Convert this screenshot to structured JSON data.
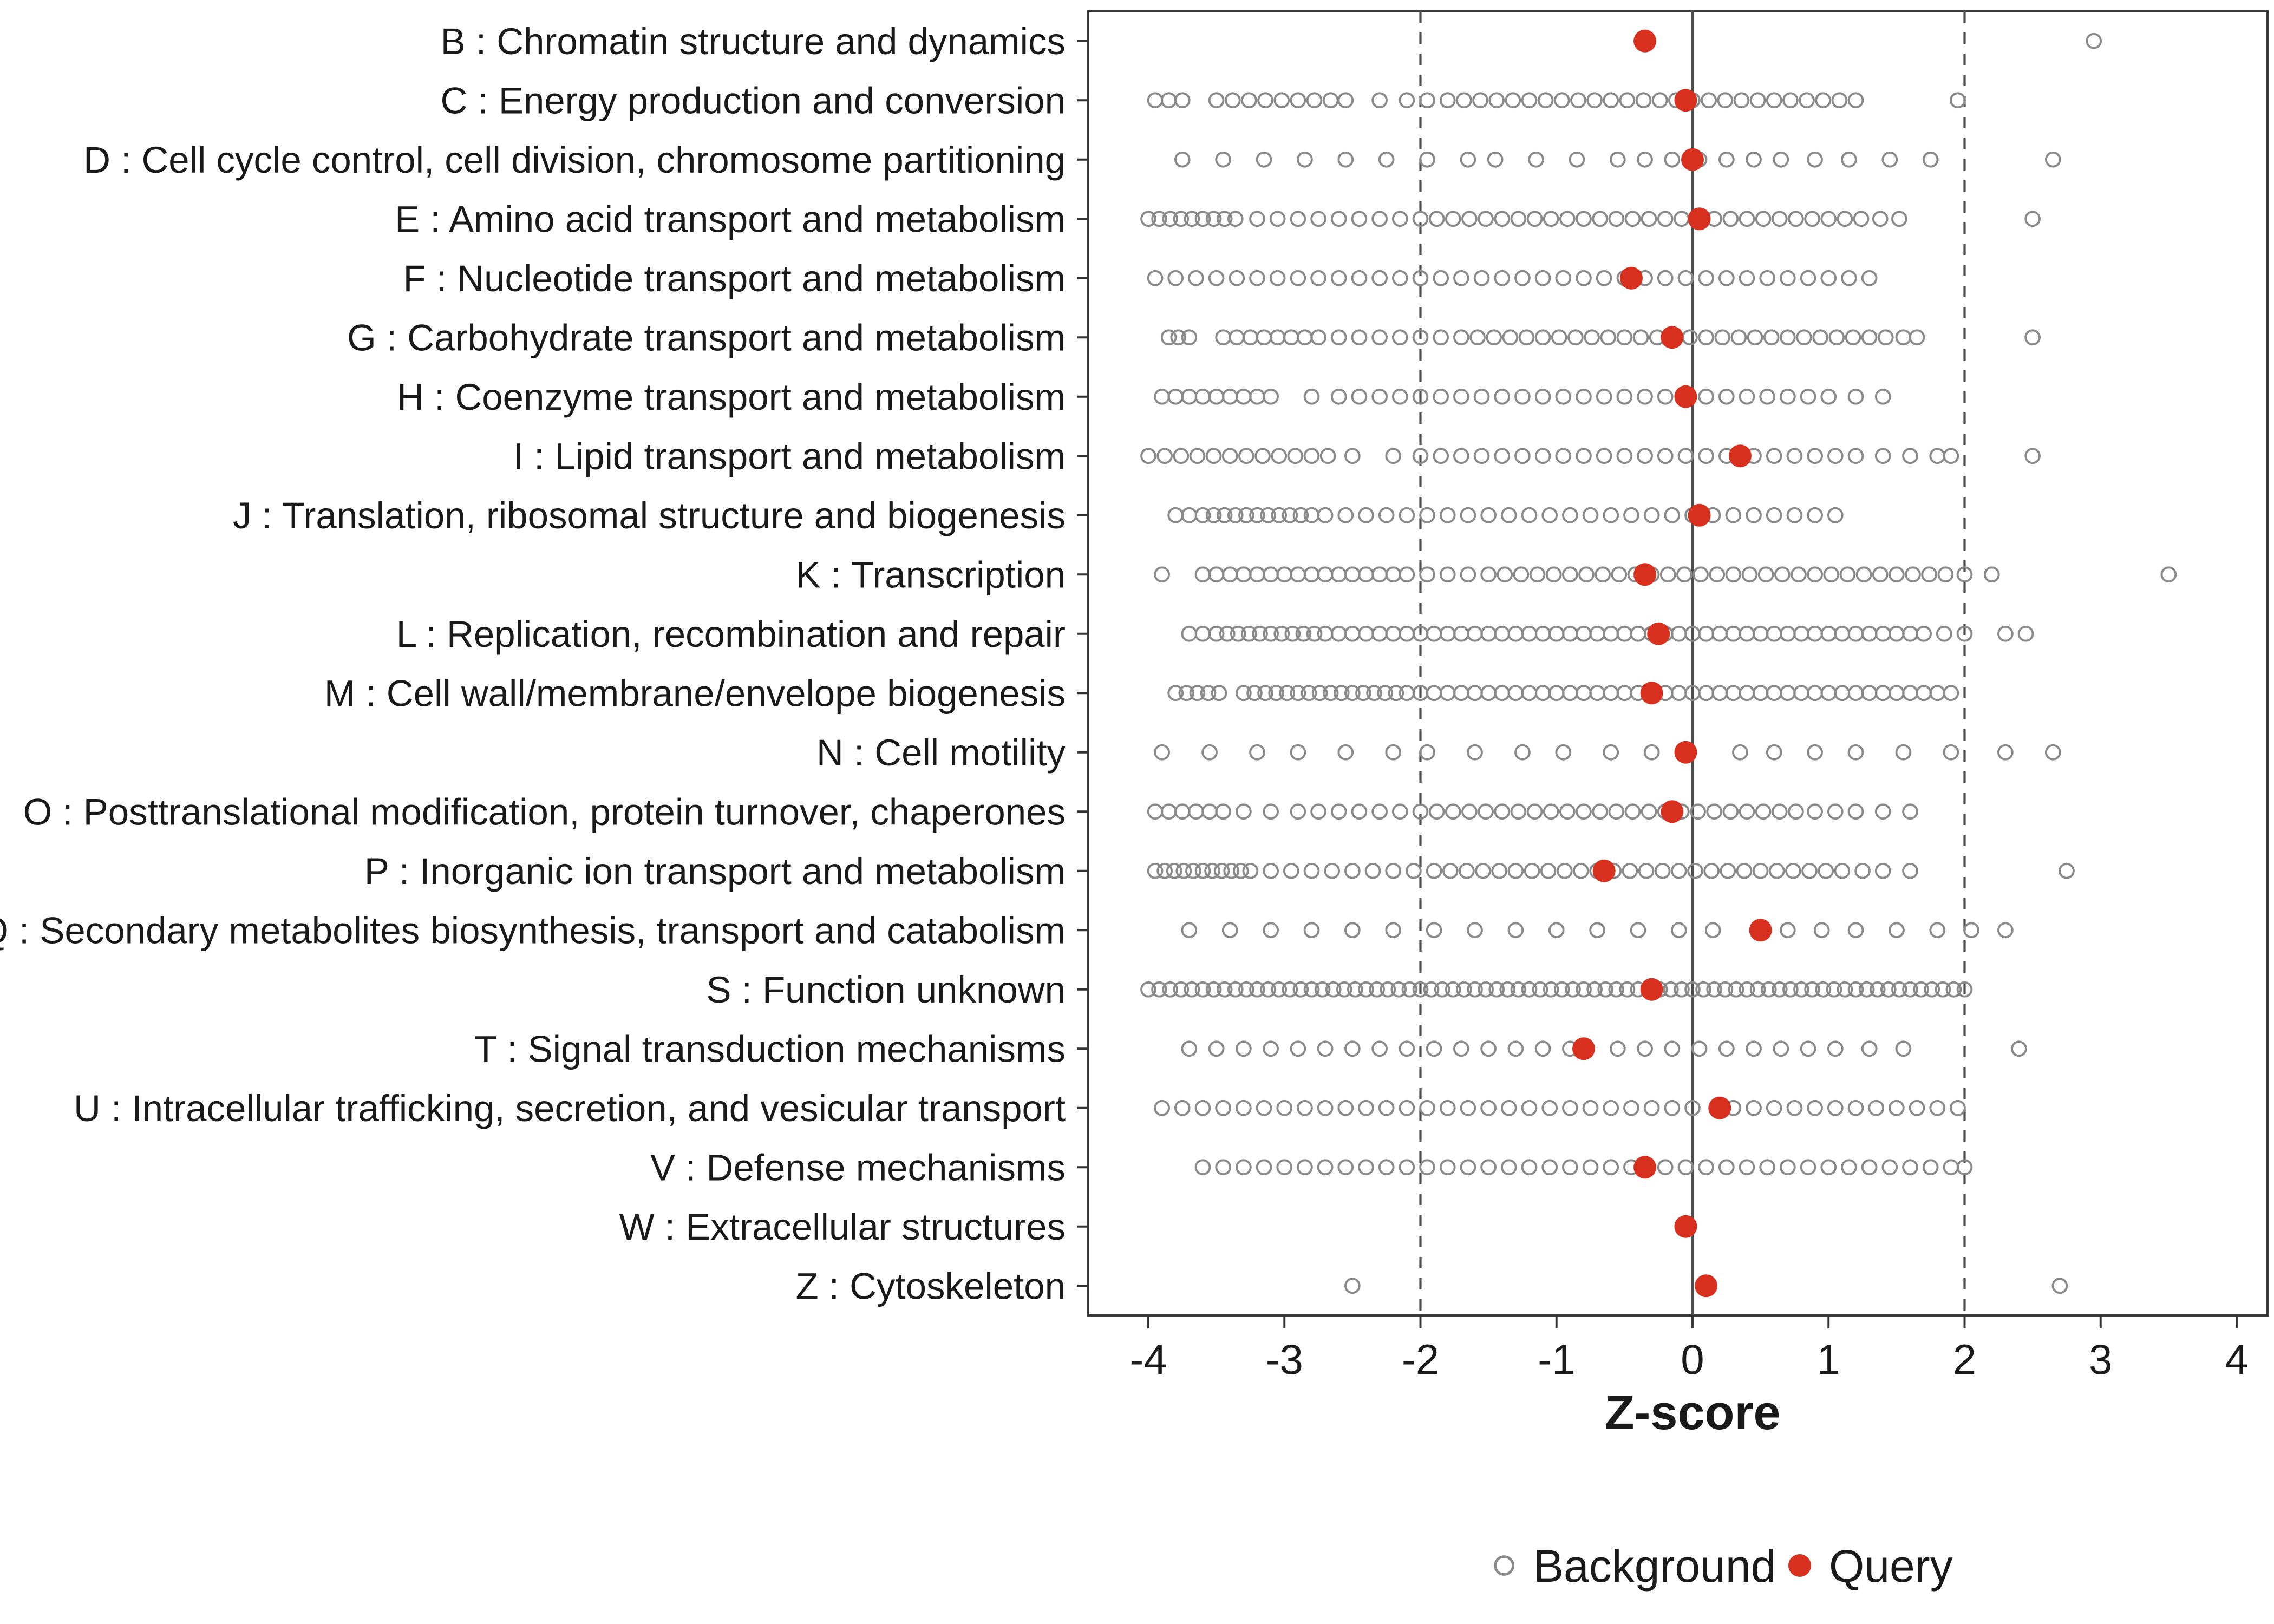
{
  "colors": {
    "query": "#d7301f",
    "background_stroke": "#8a8a8a",
    "axis_text": "#1a1a1a",
    "ref_line": "#4d4d4d",
    "panel_border": "#333333"
  },
  "legend": {
    "items": [
      {
        "label": "Background",
        "marker": "open-circle"
      },
      {
        "label": "Query",
        "marker": "filled-circle"
      }
    ]
  },
  "chart_data": {
    "type": "scatter",
    "title": "",
    "xlabel": "Z-score",
    "ylabel": "",
    "xlim": [
      -4.5,
      4.5
    ],
    "x_ticks": [
      -4,
      -3,
      -2,
      -1,
      0,
      1,
      2,
      3,
      4
    ],
    "grid": false,
    "legend_position": "bottom",
    "reference_lines": {
      "solid": [
        0
      ],
      "dashed": [
        -2,
        2
      ]
    },
    "categories": [
      {
        "label": "B : Chromatin structure and dynamics",
        "query": -0.35,
        "background": [
          2.95
        ]
      },
      {
        "label": "C : Energy production and conversion",
        "query": -0.05,
        "background": [
          -3.95,
          -3.85,
          -3.75,
          -3.5,
          -3.38,
          -3.26,
          -3.14,
          -3.02,
          -2.9,
          -2.78,
          -2.66,
          -2.55,
          -2.3,
          -2.1,
          -1.95,
          -1.8,
          -1.68,
          -1.56,
          -1.44,
          -1.32,
          -1.2,
          -1.08,
          -0.96,
          -0.84,
          -0.72,
          -0.6,
          -0.48,
          -0.36,
          -0.24,
          -0.12,
          0,
          0.12,
          0.24,
          0.36,
          0.48,
          0.6,
          0.72,
          0.84,
          0.96,
          1.08,
          1.2,
          1.95
        ]
      },
      {
        "label": "D : Cell cycle control, cell division, chromosome partitioning",
        "query": 0.0,
        "background": [
          -3.75,
          -3.45,
          -3.15,
          -2.85,
          -2.55,
          -2.25,
          -1.95,
          -1.65,
          -1.45,
          -1.15,
          -0.85,
          -0.55,
          -0.35,
          -0.15,
          0.05,
          0.25,
          0.45,
          0.65,
          0.9,
          1.15,
          1.45,
          1.75,
          2.65
        ]
      },
      {
        "label": "E : Amino acid transport and metabolism",
        "query": 0.05,
        "background": [
          -4,
          -3.92,
          -3.84,
          -3.76,
          -3.68,
          -3.6,
          -3.52,
          -3.44,
          -3.36,
          -3.2,
          -3.05,
          -2.9,
          -2.75,
          -2.6,
          -2.45,
          -2.3,
          -2.15,
          -2,
          -1.88,
          -1.76,
          -1.64,
          -1.52,
          -1.4,
          -1.28,
          -1.16,
          -1.04,
          -0.92,
          -0.8,
          -0.68,
          -0.56,
          -0.44,
          -0.32,
          -0.2,
          -0.08,
          0.04,
          0.16,
          0.28,
          0.4,
          0.52,
          0.64,
          0.76,
          0.88,
          1,
          1.12,
          1.24,
          1.38,
          1.52,
          2.5
        ]
      },
      {
        "label": "F : Nucleotide transport and metabolism",
        "query": -0.45,
        "background": [
          -3.95,
          -3.8,
          -3.65,
          -3.5,
          -3.35,
          -3.2,
          -3.05,
          -2.9,
          -2.75,
          -2.6,
          -2.45,
          -2.3,
          -2.15,
          -2,
          -1.85,
          -1.7,
          -1.55,
          -1.4,
          -1.25,
          -1.1,
          -0.95,
          -0.8,
          -0.65,
          -0.5,
          -0.35,
          -0.2,
          -0.05,
          0.1,
          0.25,
          0.4,
          0.55,
          0.7,
          0.85,
          1,
          1.15,
          1.3
        ]
      },
      {
        "label": "G : Carbohydrate transport and metabolism",
        "query": -0.15,
        "background": [
          -3.85,
          -3.78,
          -3.7,
          -3.45,
          -3.35,
          -3.25,
          -3.15,
          -3.05,
          -2.95,
          -2.85,
          -2.75,
          -2.6,
          -2.45,
          -2.3,
          -2.15,
          -2,
          -1.85,
          -1.7,
          -1.58,
          -1.46,
          -1.34,
          -1.22,
          -1.1,
          -0.98,
          -0.86,
          -0.74,
          -0.62,
          -0.5,
          -0.38,
          -0.26,
          -0.14,
          -0.02,
          0.1,
          0.22,
          0.34,
          0.46,
          0.58,
          0.7,
          0.82,
          0.94,
          1.06,
          1.18,
          1.3,
          1.42,
          1.55,
          1.65,
          2.5
        ]
      },
      {
        "label": "H : Coenzyme transport and metabolism",
        "query": -0.05,
        "background": [
          -3.9,
          -3.8,
          -3.7,
          -3.6,
          -3.5,
          -3.4,
          -3.3,
          -3.2,
          -3.1,
          -2.8,
          -2.6,
          -2.45,
          -2.3,
          -2.15,
          -2,
          -1.85,
          -1.7,
          -1.55,
          -1.4,
          -1.25,
          -1.1,
          -0.95,
          -0.8,
          -0.65,
          -0.5,
          -0.35,
          -0.2,
          -0.05,
          0.1,
          0.25,
          0.4,
          0.55,
          0.7,
          0.85,
          1,
          1.2,
          1.4
        ]
      },
      {
        "label": "I : Lipid transport and metabolism",
        "query": 0.35,
        "background": [
          -4,
          -3.88,
          -3.76,
          -3.64,
          -3.52,
          -3.4,
          -3.28,
          -3.16,
          -3.04,
          -2.92,
          -2.8,
          -2.68,
          -2.5,
          -2.2,
          -2,
          -1.85,
          -1.7,
          -1.55,
          -1.4,
          -1.25,
          -1.1,
          -0.95,
          -0.8,
          -0.65,
          -0.5,
          -0.35,
          -0.2,
          -0.05,
          0.1,
          0.25,
          0.45,
          0.6,
          0.75,
          0.9,
          1.05,
          1.2,
          1.4,
          1.6,
          1.8,
          1.9,
          2.5
        ]
      },
      {
        "label": "J : Translation, ribosomal structure and biogenesis",
        "query": 0.05,
        "background": [
          -3.8,
          -3.7,
          -3.6,
          -3.52,
          -3.44,
          -3.36,
          -3.28,
          -3.2,
          -3.12,
          -3.04,
          -2.96,
          -2.88,
          -2.8,
          -2.7,
          -2.55,
          -2.4,
          -2.25,
          -2.1,
          -1.95,
          -1.8,
          -1.65,
          -1.5,
          -1.35,
          -1.2,
          -1.05,
          -0.9,
          -0.75,
          -0.6,
          -0.45,
          -0.3,
          -0.15,
          0,
          0.15,
          0.3,
          0.45,
          0.6,
          0.75,
          0.9,
          1.05
        ]
      },
      {
        "label": "K : Transcription",
        "query": -0.35,
        "background": [
          -3.9,
          -3.6,
          -3.5,
          -3.4,
          -3.3,
          -3.2,
          -3.1,
          -3,
          -2.9,
          -2.8,
          -2.7,
          -2.6,
          -2.5,
          -2.4,
          -2.3,
          -2.2,
          -2.1,
          -1.95,
          -1.8,
          -1.65,
          -1.5,
          -1.38,
          -1.26,
          -1.14,
          -1.02,
          -0.9,
          -0.78,
          -0.66,
          -0.54,
          -0.42,
          -0.3,
          -0.18,
          -0.06,
          0.06,
          0.18,
          0.3,
          0.42,
          0.54,
          0.66,
          0.78,
          0.9,
          1.02,
          1.14,
          1.26,
          1.38,
          1.5,
          1.62,
          1.74,
          1.86,
          2,
          2.2,
          3.5
        ]
      },
      {
        "label": "L : Replication, recombination and repair",
        "query": -0.25,
        "background": [
          -3.7,
          -3.6,
          -3.5,
          -3.42,
          -3.34,
          -3.26,
          -3.18,
          -3.1,
          -3.02,
          -2.94,
          -2.86,
          -2.78,
          -2.7,
          -2.6,
          -2.5,
          -2.4,
          -2.3,
          -2.2,
          -2.1,
          -2,
          -1.9,
          -1.8,
          -1.7,
          -1.6,
          -1.5,
          -1.4,
          -1.3,
          -1.2,
          -1.1,
          -1,
          -0.9,
          -0.8,
          -0.7,
          -0.6,
          -0.5,
          -0.4,
          -0.3,
          -0.2,
          -0.1,
          0,
          0.1,
          0.2,
          0.3,
          0.4,
          0.5,
          0.6,
          0.7,
          0.8,
          0.9,
          1,
          1.1,
          1.2,
          1.3,
          1.4,
          1.5,
          1.6,
          1.7,
          1.85,
          2,
          2.3,
          2.45
        ]
      },
      {
        "label": "M : Cell wall/membrane/envelope biogenesis",
        "query": -0.3,
        "background": [
          -3.8,
          -3.72,
          -3.64,
          -3.56,
          -3.48,
          -3.3,
          -3.22,
          -3.14,
          -3.06,
          -2.98,
          -2.9,
          -2.82,
          -2.74,
          -2.66,
          -2.58,
          -2.5,
          -2.42,
          -2.34,
          -2.26,
          -2.18,
          -2.1,
          -2,
          -1.9,
          -1.8,
          -1.7,
          -1.6,
          -1.5,
          -1.4,
          -1.3,
          -1.2,
          -1.1,
          -1,
          -0.9,
          -0.8,
          -0.7,
          -0.6,
          -0.5,
          -0.4,
          -0.3,
          -0.2,
          -0.1,
          0,
          0.1,
          0.2,
          0.3,
          0.4,
          0.5,
          0.6,
          0.7,
          0.8,
          0.9,
          1,
          1.1,
          1.2,
          1.3,
          1.4,
          1.5,
          1.6,
          1.7,
          1.8,
          1.9
        ]
      },
      {
        "label": "N : Cell motility",
        "query": -0.05,
        "background": [
          -3.9,
          -3.55,
          -3.2,
          -2.9,
          -2.55,
          -2.2,
          -1.95,
          -1.6,
          -1.25,
          -0.95,
          -0.6,
          -0.3,
          0.35,
          0.6,
          0.9,
          1.2,
          1.55,
          1.9,
          2.3,
          2.65
        ]
      },
      {
        "label": "O : Posttranslational modification, protein turnover, chaperones",
        "query": -0.15,
        "background": [
          -3.95,
          -3.85,
          -3.75,
          -3.65,
          -3.55,
          -3.45,
          -3.3,
          -3.1,
          -2.9,
          -2.75,
          -2.6,
          -2.45,
          -2.3,
          -2.15,
          -2,
          -1.88,
          -1.76,
          -1.64,
          -1.52,
          -1.4,
          -1.28,
          -1.16,
          -1.04,
          -0.92,
          -0.8,
          -0.68,
          -0.56,
          -0.44,
          -0.32,
          -0.2,
          -0.08,
          0.04,
          0.16,
          0.28,
          0.4,
          0.52,
          0.64,
          0.76,
          0.9,
          1.05,
          1.2,
          1.4,
          1.6
        ]
      },
      {
        "label": "P : Inorganic ion transport and metabolism",
        "query": -0.65,
        "background": [
          -3.95,
          -3.88,
          -3.81,
          -3.74,
          -3.67,
          -3.6,
          -3.53,
          -3.46,
          -3.39,
          -3.32,
          -3.25,
          -3.1,
          -2.95,
          -2.8,
          -2.65,
          -2.5,
          -2.35,
          -2.2,
          -2.05,
          -1.9,
          -1.78,
          -1.66,
          -1.54,
          -1.42,
          -1.3,
          -1.18,
          -1.06,
          -0.94,
          -0.82,
          -0.7,
          -0.58,
          -0.46,
          -0.34,
          -0.22,
          -0.1,
          0.02,
          0.14,
          0.26,
          0.38,
          0.5,
          0.62,
          0.74,
          0.86,
          0.98,
          1.1,
          1.25,
          1.4,
          1.6,
          2.75
        ]
      },
      {
        "label": "Q : Secondary metabolites biosynthesis, transport and catabolism",
        "query": 0.5,
        "background": [
          -3.7,
          -3.4,
          -3.1,
          -2.8,
          -2.5,
          -2.2,
          -1.9,
          -1.6,
          -1.3,
          -1,
          -0.7,
          -0.4,
          -0.1,
          0.15,
          0.7,
          0.95,
          1.2,
          1.5,
          1.8,
          2.05,
          2.3
        ]
      },
      {
        "label": "S : Function unknown",
        "query": -0.3,
        "background": [
          -4,
          -3.92,
          -3.84,
          -3.76,
          -3.68,
          -3.6,
          -3.52,
          -3.44,
          -3.36,
          -3.28,
          -3.2,
          -3.12,
          -3.04,
          -2.96,
          -2.88,
          -2.8,
          -2.72,
          -2.64,
          -2.56,
          -2.48,
          -2.4,
          -2.32,
          -2.24,
          -2.16,
          -2.08,
          -2,
          -1.92,
          -1.84,
          -1.76,
          -1.68,
          -1.6,
          -1.52,
          -1.44,
          -1.36,
          -1.28,
          -1.2,
          -1.12,
          -1.04,
          -0.96,
          -0.88,
          -0.8,
          -0.72,
          -0.64,
          -0.56,
          -0.48,
          -0.4,
          -0.32,
          -0.24,
          -0.16,
          -0.08,
          0,
          0.08,
          0.16,
          0.24,
          0.32,
          0.4,
          0.48,
          0.56,
          0.64,
          0.72,
          0.8,
          0.88,
          0.96,
          1.04,
          1.12,
          1.2,
          1.28,
          1.36,
          1.44,
          1.52,
          1.6,
          1.68,
          1.76,
          1.84,
          1.92,
          2
        ]
      },
      {
        "label": "T : Signal transduction mechanisms",
        "query": -0.8,
        "background": [
          -3.7,
          -3.5,
          -3.3,
          -3.1,
          -2.9,
          -2.7,
          -2.5,
          -2.3,
          -2.1,
          -1.9,
          -1.7,
          -1.5,
          -1.3,
          -1.1,
          -0.9,
          -0.55,
          -0.35,
          -0.15,
          0.05,
          0.25,
          0.45,
          0.65,
          0.85,
          1.05,
          1.3,
          1.55,
          2.4
        ]
      },
      {
        "label": "U : Intracellular trafficking, secretion, and vesicular transport",
        "query": 0.2,
        "background": [
          -3.9,
          -3.75,
          -3.6,
          -3.45,
          -3.3,
          -3.15,
          -3,
          -2.85,
          -2.7,
          -2.55,
          -2.4,
          -2.25,
          -2.1,
          -1.95,
          -1.8,
          -1.65,
          -1.5,
          -1.35,
          -1.2,
          -1.05,
          -0.9,
          -0.75,
          -0.6,
          -0.45,
          -0.3,
          -0.15,
          0,
          0.3,
          0.45,
          0.6,
          0.75,
          0.9,
          1.05,
          1.2,
          1.35,
          1.5,
          1.65,
          1.8,
          1.95
        ]
      },
      {
        "label": "V : Defense mechanisms",
        "query": -0.35,
        "background": [
          -3.6,
          -3.45,
          -3.3,
          -3.15,
          -3,
          -2.85,
          -2.7,
          -2.55,
          -2.4,
          -2.25,
          -2.1,
          -1.95,
          -1.8,
          -1.65,
          -1.5,
          -1.35,
          -1.2,
          -1.05,
          -0.9,
          -0.75,
          -0.6,
          -0.45,
          -0.2,
          -0.05,
          0.1,
          0.25,
          0.4,
          0.55,
          0.7,
          0.85,
          1,
          1.15,
          1.3,
          1.45,
          1.6,
          1.75,
          1.9,
          2
        ]
      },
      {
        "label": "W : Extracellular structures",
        "query": -0.05,
        "background": []
      },
      {
        "label": "Z : Cytoskeleton",
        "query": 0.1,
        "background": [
          -2.5,
          2.7
        ]
      }
    ]
  }
}
